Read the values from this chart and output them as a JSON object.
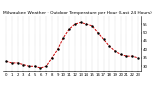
{
  "title": "Milwaukee Weather · Outdoor Temperature per Hour (Last 24 Hours)",
  "hours": [
    0,
    1,
    2,
    3,
    4,
    5,
    6,
    7,
    8,
    9,
    10,
    11,
    12,
    13,
    14,
    15,
    16,
    17,
    18,
    19,
    20,
    21,
    22,
    23
  ],
  "temps": [
    33,
    32,
    32,
    31,
    30,
    30,
    29,
    30,
    35,
    40,
    47,
    52,
    55,
    56,
    55,
    54,
    50,
    46,
    42,
    39,
    37,
    36,
    36,
    35
  ],
  "line_color": "#cc0000",
  "marker_color": "#000000",
  "bg_color": "#ffffff",
  "grid_color": "#888888",
  "ylim": [
    27,
    60
  ],
  "ytick_values": [
    30,
    35,
    40,
    45,
    50,
    55
  ],
  "title_fontsize": 3.2,
  "tick_fontsize": 2.8,
  "fig_width": 1.6,
  "fig_height": 0.87,
  "dpi": 100
}
